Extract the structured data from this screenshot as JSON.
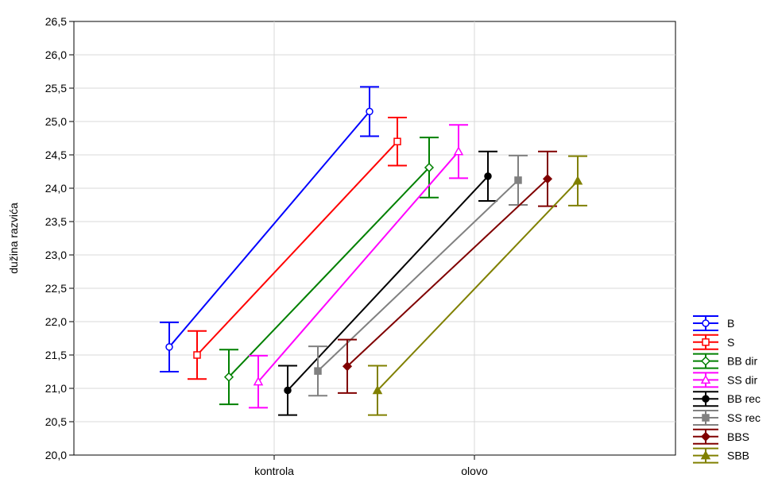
{
  "chart_data": {
    "type": "line",
    "title": "",
    "xlabel": "",
    "ylabel": "dužina razvića",
    "categories": [
      "kontrola",
      "olovo"
    ],
    "ylim": [
      20.0,
      26.5
    ],
    "yticks": [
      "20,0",
      "20,5",
      "21,0",
      "21,5",
      "22,0",
      "22,5",
      "23,0",
      "23,5",
      "24,0",
      "24,5",
      "25,0",
      "25,5",
      "26,0",
      "26,5"
    ],
    "grid": true,
    "legend_position": "bottom-right outside",
    "error_bars": true,
    "series": [
      {
        "name": "B",
        "color": "#0000ff",
        "marker": "circle-open",
        "values": [
          21.62,
          25.15
        ],
        "err": [
          0.37,
          0.37
        ]
      },
      {
        "name": "S",
        "color": "#ff0000",
        "marker": "square-open",
        "values": [
          21.5,
          24.7
        ],
        "err": [
          0.36,
          0.36
        ]
      },
      {
        "name": "BB dir",
        "color": "#008000",
        "marker": "diamond-open",
        "values": [
          21.17,
          24.31
        ],
        "err": [
          0.41,
          0.45
        ]
      },
      {
        "name": "SS dir",
        "color": "#ff00ff",
        "marker": "triangle-open",
        "values": [
          21.1,
          24.55
        ],
        "err": [
          0.39,
          0.4
        ]
      },
      {
        "name": "BB rec",
        "color": "#000000",
        "marker": "circle-filled",
        "values": [
          20.97,
          24.18
        ],
        "err": [
          0.37,
          0.37
        ]
      },
      {
        "name": "SS rec",
        "color": "#808080",
        "marker": "square-filled",
        "values": [
          21.26,
          24.12
        ],
        "err": [
          0.37,
          0.37
        ]
      },
      {
        "name": "BBS",
        "color": "#800000",
        "marker": "diamond-filled",
        "values": [
          21.33,
          24.14
        ],
        "err": [
          0.4,
          0.41
        ]
      },
      {
        "name": "SBB",
        "color": "#808000",
        "marker": "triangle-filled",
        "values": [
          20.97,
          24.11
        ],
        "err": [
          0.37,
          0.37
        ]
      }
    ]
  }
}
